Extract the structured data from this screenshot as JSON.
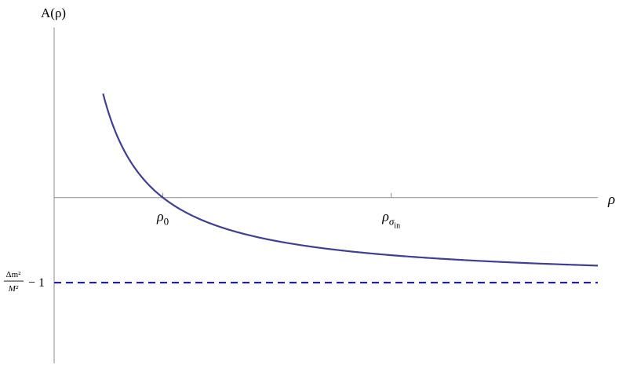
{
  "chart_data": {
    "type": "line",
    "title": "",
    "ylabel": "A(ρ)",
    "xlabel": "ρ",
    "xticks": [
      {
        "label": "ρ",
        "sub": "0",
        "x": 1
      },
      {
        "label": "ρ",
        "sub": "σ",
        "subsub": "in",
        "x": 3.1
      }
    ],
    "hline": {
      "label_num": "Δm²",
      "label_den": "M²",
      "label_tail": "− 1",
      "y": -1,
      "style": "dashed",
      "color": "#1a1ad6"
    },
    "series": [
      {
        "color": "#3f3f96",
        "formula": "1/x - 1 (x ≥ 0.45)",
        "x_start": 0.45,
        "x_end": 5
      }
    ],
    "xlim": [
      0,
      5
    ],
    "ylim": [
      -1.95,
      2.0
    ],
    "grid": false,
    "legend": "none"
  }
}
